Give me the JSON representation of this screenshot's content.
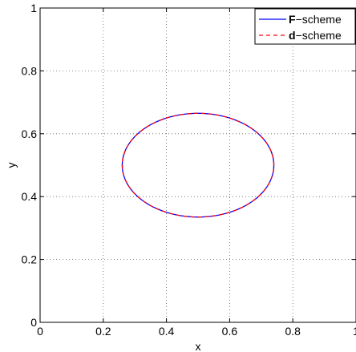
{
  "chart_data": {
    "type": "line",
    "title": "",
    "xlabel": "x",
    "ylabel": "y",
    "xlim": [
      0,
      1
    ],
    "ylim": [
      0,
      1
    ],
    "xticks": [
      0,
      0.2,
      0.4,
      0.6,
      0.8,
      1
    ],
    "yticks": [
      0,
      0.2,
      0.4,
      0.6,
      0.8,
      1
    ],
    "xtick_labels": [
      "0",
      "0.2",
      "0.4",
      "0.6",
      "0.8",
      "1"
    ],
    "ytick_labels": [
      "0",
      "0.2",
      "0.4",
      "0.6",
      "0.8",
      "1"
    ],
    "grid": true,
    "legend_position": "top-right",
    "series": [
      {
        "name_bold": "F",
        "name_rest": "−scheme",
        "color": "#0000ff",
        "style": "solid",
        "shape": "ellipse",
        "center": [
          0.5,
          0.5
        ],
        "radius_x": 0.24,
        "radius_y": 0.165
      },
      {
        "name_bold": "d",
        "name_rest": "−scheme",
        "color": "#ff0000",
        "style": "dashed",
        "shape": "ellipse",
        "center": [
          0.5,
          0.5
        ],
        "radius_x": 0.24,
        "radius_y": 0.165
      }
    ]
  }
}
